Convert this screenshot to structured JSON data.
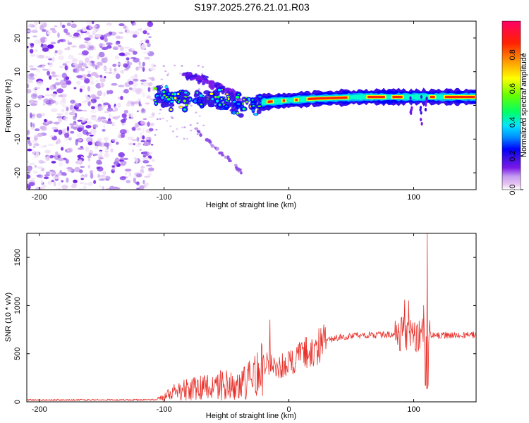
{
  "title": "S197.2025.276.21.01.R03",
  "colors": {
    "snr_line": "#e8302a",
    "axis": "#000000",
    "background": "#ffffff"
  },
  "chart_data": [
    {
      "type": "heatmap",
      "name": "spectrogram",
      "title": "S197.2025.276.21.01.R03",
      "xlabel": "Height of straight line (km)",
      "ylabel": "Frequency (Hz)",
      "xlim": [
        -210,
        150
      ],
      "ylim": [
        -25,
        25
      ],
      "xticks": [
        -200,
        -100,
        0,
        100
      ],
      "yticks": [
        -20,
        -10,
        0,
        10,
        20
      ],
      "xtick_labels": [
        "-200",
        "-100",
        "0",
        "100"
      ],
      "ytick_labels": [
        "-20",
        "-10",
        "0",
        "10",
        "20"
      ],
      "colorbar": {
        "label": "Normalized spectral amplitude",
        "range": [
          0,
          1
        ],
        "ticks": [
          0.0,
          0.2,
          0.4,
          0.6,
          0.8
        ],
        "tick_labels": [
          "0.0",
          "0.2",
          "0.4",
          "0.6",
          "0.8"
        ],
        "colors": [
          "#ffffff",
          "#e9c9f2",
          "#a98ff0",
          "#7a18e8",
          "#3a10e6",
          "#0000ff",
          "#008cff",
          "#00e5ff",
          "#00ff66",
          "#66ff00",
          "#ffff00",
          "#ff9900",
          "#ff2200",
          "#ff0066"
        ]
      },
      "features": {
        "noise_region_km": [
          -210,
          -108
        ],
        "carrier_start_km": -108,
        "carrier_freq_hz": [
          [
            -108,
            3
          ],
          [
            -90,
            2
          ],
          [
            -75,
            1
          ],
          [
            -60,
            1.5
          ],
          [
            -45,
            1
          ],
          [
            -30,
            0
          ],
          [
            -20,
            1
          ],
          [
            0,
            1.5
          ],
          [
            20,
            2
          ],
          [
            60,
            2.5
          ],
          [
            100,
            2.5
          ],
          [
            150,
            2.5
          ]
        ],
        "upper_branch_hz": [
          [
            -85,
            9
          ],
          [
            -70,
            8
          ],
          [
            -55,
            5
          ],
          [
            -40,
            3
          ]
        ],
        "lower_branch_hz": [
          [
            -75,
            -7
          ],
          [
            -60,
            -12
          ],
          [
            -45,
            -17
          ],
          [
            -38,
            -20
          ]
        ]
      }
    },
    {
      "type": "line",
      "name": "snr",
      "xlabel": "Height of straight line (km)",
      "ylabel": "SNR (10 * v/v)",
      "xlim": [
        -210,
        150
      ],
      "ylim": [
        0,
        1750
      ],
      "xticks": [
        -200,
        -100,
        0,
        100
      ],
      "yticks": [
        0,
        500,
        1000,
        1500
      ],
      "xtick_labels": [
        "-200",
        "-100",
        "0",
        "100"
      ],
      "ytick_labels": [
        "0",
        "500",
        "1000",
        "1500"
      ],
      "trend": {
        "x": [
          -210,
          -110,
          -100,
          -95,
          -80,
          -60,
          -40,
          -25,
          -20,
          -15,
          -10,
          0,
          10,
          20,
          30,
          40,
          60,
          80,
          90,
          95,
          100,
          105,
          110,
          115,
          130,
          150
        ],
        "y": [
          20,
          20,
          40,
          90,
          130,
          160,
          210,
          280,
          360,
          420,
          360,
          400,
          470,
          560,
          630,
          675,
          690,
          700,
          710,
          720,
          690,
          690,
          700,
          690,
          690,
          695
        ]
      },
      "spikes": [
        {
          "x": -15,
          "y": 850
        },
        {
          "x": 93,
          "y": 1060
        },
        {
          "x": 96,
          "y": 1050
        },
        {
          "x": 108,
          "y": 1000
        },
        {
          "x": 111,
          "y": 1745
        }
      ]
    }
  ]
}
